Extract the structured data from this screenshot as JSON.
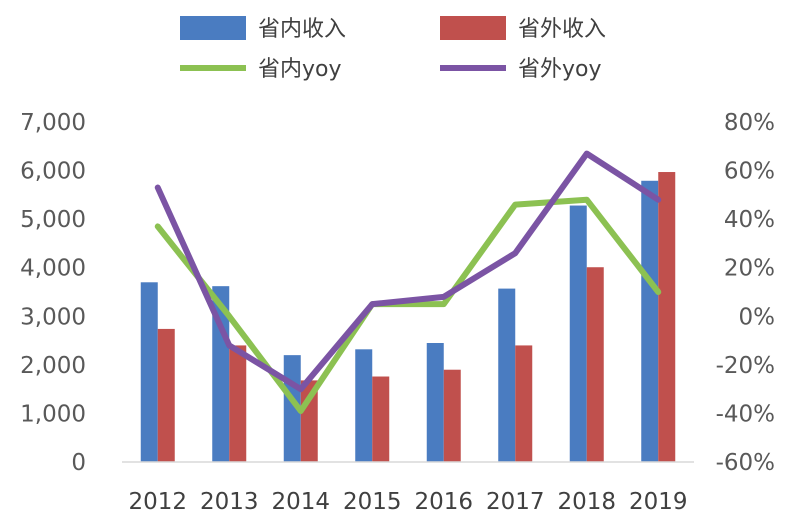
{
  "chart_data": {
    "type": "bar",
    "categories": [
      "2012",
      "2013",
      "2014",
      "2015",
      "2016",
      "2017",
      "2018",
      "2019"
    ],
    "series": [
      {
        "name": "省内收入",
        "kind": "bar",
        "axis": "left",
        "color": "#4a7cc1",
        "values": [
          3700,
          3620,
          2200,
          2320,
          2450,
          3570,
          5280,
          5790
        ]
      },
      {
        "name": "省外收入",
        "kind": "bar",
        "axis": "left",
        "color": "#c0504d",
        "values": [
          2740,
          2400,
          1680,
          1760,
          1900,
          2400,
          4010,
          5970
        ]
      },
      {
        "name": "省内yoy",
        "kind": "line",
        "axis": "right",
        "color": "#8cc152",
        "values": [
          37,
          0,
          -39,
          5,
          5,
          46,
          48,
          10
        ]
      },
      {
        "name": "省外yoy",
        "kind": "line",
        "axis": "right",
        "color": "#7b54a4",
        "values": [
          53,
          -12,
          -30,
          5,
          8,
          26,
          67,
          48
        ]
      }
    ],
    "ylim_left": [
      0,
      7000
    ],
    "yticks_left": [
      "0",
      "1,000",
      "2,000",
      "3,000",
      "4,000",
      "5,000",
      "6,000",
      "7,000"
    ],
    "ylim_right": [
      -60,
      80
    ],
    "yticks_right": [
      "-60%",
      "-40%",
      "-20%",
      "0%",
      "20%",
      "40%",
      "60%",
      "80%"
    ],
    "grid": false,
    "legend_position": "top"
  }
}
